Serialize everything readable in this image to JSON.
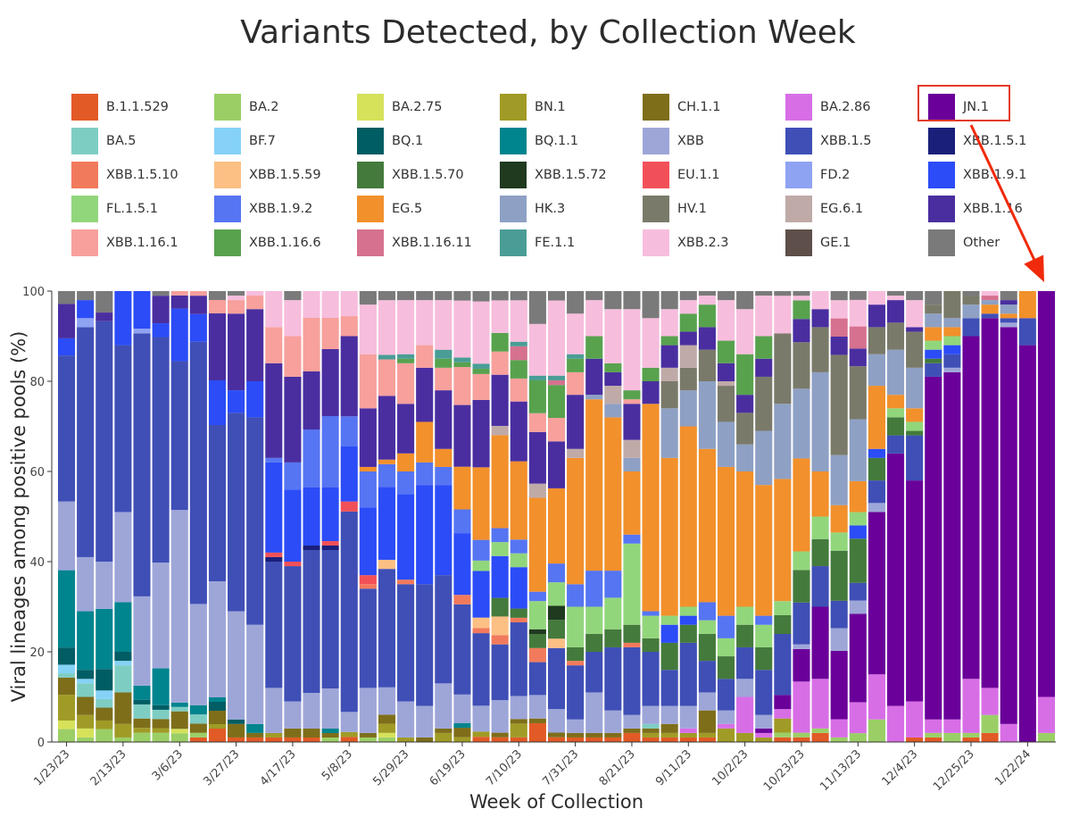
{
  "chart_data": {
    "type": "bar",
    "stacked": true,
    "title": "Variants Detected, by Collection Week",
    "xlabel": "Week of Collection",
    "ylabel": "Viral lineages among positive pools (%)",
    "ylim": [
      0,
      100
    ],
    "yticks": [
      0,
      20,
      40,
      60,
      80,
      100
    ],
    "x_tick_labels": [
      "1/23/23",
      "2/13/23",
      "3/6/23",
      "3/27/23",
      "4/17/23",
      "5/8/23",
      "5/29/23",
      "6/19/23",
      "7/10/23",
      "7/31/23",
      "8/21/23",
      "9/11/23",
      "10/2/23",
      "10/23/23",
      "11/13/23",
      "12/4/23",
      "12/25/23",
      "1/22/24"
    ],
    "x_tick_every": 3,
    "legend_placement": "top",
    "highlighted_legend_entry": "JN.1",
    "legend": [
      {
        "name": "B.1.1.529",
        "color": "#e25a26"
      },
      {
        "name": "BA.2",
        "color": "#9bcf66"
      },
      {
        "name": "BA.2.75",
        "color": "#d5e25a"
      },
      {
        "name": "BN.1",
        "color": "#a09b26"
      },
      {
        "name": "CH.1.1",
        "color": "#7e6e1a"
      },
      {
        "name": "BA.2.86",
        "color": "#d86ee6"
      },
      {
        "name": "JN.1",
        "color": "#6a0099"
      },
      {
        "name": "BA.5",
        "color": "#7ecdc3"
      },
      {
        "name": "BF.7",
        "color": "#85d2f6"
      },
      {
        "name": "BQ.1",
        "color": "#005d63"
      },
      {
        "name": "BQ.1.1",
        "color": "#00848e"
      },
      {
        "name": "XBB",
        "color": "#9ea6d8"
      },
      {
        "name": "XBB.1.5",
        "color": "#3f4fb6"
      },
      {
        "name": "XBB.1.5.1",
        "color": "#1a1f7a"
      },
      {
        "name": "XBB.1.5.10",
        "color": "#f27a5c"
      },
      {
        "name": "XBB.1.5.59",
        "color": "#fcbf84"
      },
      {
        "name": "XBB.1.5.70",
        "color": "#447a3c"
      },
      {
        "name": "XBB.1.5.72",
        "color": "#1f3a1f"
      },
      {
        "name": "EU.1.1",
        "color": "#f25058"
      },
      {
        "name": "FD.2",
        "color": "#8fa3f3"
      },
      {
        "name": "XBB.1.9.1",
        "color": "#2b4cf7"
      },
      {
        "name": "FL.1.5.1",
        "color": "#92d67c"
      },
      {
        "name": "XBB.1.9.2",
        "color": "#5675f2"
      },
      {
        "name": "EG.5",
        "color": "#f2902b"
      },
      {
        "name": "HK.3",
        "color": "#8ea0c4"
      },
      {
        "name": "HV.1",
        "color": "#7a7a6a"
      },
      {
        "name": "EG.6.1",
        "color": "#bfaaa8"
      },
      {
        "name": "XBB.1.16",
        "color": "#4a2ea0"
      },
      {
        "name": "XBB.1.16.1",
        "color": "#f7a09c"
      },
      {
        "name": "XBB.1.16.6",
        "color": "#58a24e"
      },
      {
        "name": "XBB.1.16.11",
        "color": "#d6718f"
      },
      {
        "name": "FE.1.1",
        "color": "#4a9d96"
      },
      {
        "name": "XBB.2.3",
        "color": "#f7bddd"
      },
      {
        "name": "GE.1",
        "color": "#5e4f4a"
      },
      {
        "name": "Other",
        "color": "#7a7a7a"
      }
    ],
    "bars": [
      {
        "BA.2": 3,
        "BA.2.75": 2,
        "BN.1": 6,
        "CH.1.1": 4,
        "BA.5": 1,
        "BF.7": 2,
        "BQ.1": 4,
        "BQ.1.1": 18,
        "XBB": 16,
        "XBB.1.5": 34,
        "XBB.1.16": 8,
        "XBB.1.9.1": 4,
        "Other": 3
      },
      {
        "BA.2": 1,
        "BA.2.75": 2,
        "BN.1": 3,
        "CH.1.1": 4,
        "BA.5": 3,
        "BF.7": 1,
        "BQ.1": 2,
        "BQ.1.1": 13,
        "XBB": 12,
        "XBB.1.5": 51,
        "FD.2": 2,
        "XBB.1.9.1": 4,
        "Other": 2
      },
      {
        "BA.2": 3,
        "BN.1": 2,
        "CH.1.1": 3,
        "BA.5": 2,
        "BF.7": 2,
        "BQ.1": 5,
        "BQ.1.1": 14,
        "XBB": 11,
        "XBB.1.5": 56,
        "XBB.1.16": 2,
        "Other": 5
      },
      {
        "BA.2": 1,
        "BN.1": 3,
        "CH.1.1": 7,
        "BA.5": 6,
        "BF.7": 1,
        "BQ.1": 2,
        "BQ.1.1": 11,
        "XBB": 20,
        "XBB.1.5": 37,
        "XBB.1.9.1": 12
      },
      {
        "BA.2": 2,
        "BN.1": 1,
        "CH.1.1": 2,
        "BA.5": 3,
        "BQ.1": 1,
        "BQ.1.1": 3,
        "XBB": 19,
        "XBB.1.5": 56,
        "FD.2": 1,
        "XBB.1.9.1": 8
      },
      {
        "BA.2": 2,
        "BN.1": 1,
        "CH.1.1": 2,
        "BA.5": 2,
        "BQ.1": 1,
        "BQ.1.1": 8,
        "XBB": 23,
        "XBB.1.5": 49,
        "XBB.1.9.1": 3,
        "XBB.1.16": 6,
        "Other": 1
      },
      {
        "BA.2": 2,
        "BA.2.75": 1,
        "CH.1.1": 4,
        "BA.5": 1,
        "BQ.1.1": 1,
        "XBB": 44,
        "XBB.1.5": 34,
        "XBB.1.9.1": 12,
        "XBB.1.16": 3,
        "XBB.1.16.1": 1
      },
      {
        "B.1.1.529": 1,
        "BA.2": 1,
        "CH.1.1": 2,
        "BA.5": 2,
        "BQ.1.1": 2,
        "XBB": 22,
        "XBB.1.5": 57,
        "XBB.1.9.1": 6,
        "XBB.1.16": 4,
        "XBB.1.16.1": 1
      },
      {
        "B.1.1.529": 3,
        "BN.1": 1,
        "CH.1.1": 3,
        "BQ.1": 2,
        "BQ.1.1": 1,
        "XBB": 26,
        "XBB.1.5": 35,
        "XBB.1.9.1": 10,
        "XBB.1.16": 15,
        "XBB.1.16.1": 3,
        "Other": 2
      },
      {
        "B.1.1.529": 1,
        "CH.1.1": 3,
        "BQ.1": 1,
        "XBB": 24,
        "XBB.1.5": 44,
        "XBB.1.9.1": 5,
        "XBB.1.16": 17,
        "XBB.1.16.1": 3,
        "XBB.2.3": 1,
        "Other": 1
      },
      {
        "B.1.1.529": 1,
        "CH.1.1": 1,
        "BQ.1.1": 2,
        "XBB": 22,
        "XBB.1.5": 46,
        "XBB.1.9.1": 8,
        "XBB.1.16": 16,
        "XBB.1.16.1": 3,
        "XBB.2.3": 1
      },
      {
        "B.1.1.529": 1,
        "BN.1": 1,
        "XBB": 10,
        "XBB.1.5": 28,
        "XBB.1.5.1": 1,
        "EU.1.1": 1,
        "XBB.1.9.1": 20,
        "XBB.1.9.2": 1,
        "XBB.1.16": 21,
        "XBB.1.16.1": 8,
        "XBB.2.3": 8
      },
      {
        "B.1.1.529": 1,
        "CH.1.1": 2,
        "XBB": 6,
        "XBB.1.5": 30,
        "EU.1.1": 1,
        "XBB.1.9.1": 16,
        "XBB.1.9.2": 6,
        "XBB.1.16": 19,
        "XBB.1.16.1": 9,
        "XBB.2.3": 8,
        "Other": 2
      },
      {
        "B.1.1.529": 1,
        "CH.1.1": 2,
        "XBB": 8,
        "XBB.1.5": 32,
        "XBB.1.5.1": 1,
        "XBB.1.9.1": 13,
        "XBB.1.9.2": 13,
        "XBB.1.16": 13,
        "XBB.1.16.1": 12,
        "XBB.2.3": 6
      },
      {
        "BA.2": 1,
        "CH.1.1": 1,
        "BQ.1.1": 1,
        "XBB": 9,
        "XBB.1.5": 31,
        "XBB.1.5.1": 1,
        "EU.1.1": 1,
        "XBB.1.9.1": 12,
        "XBB.1.9.2": 16,
        "XBB.1.16": 15,
        "XBB.1.16.1": 7,
        "XBB.2.3": 6
      },
      {
        "B.1.1.529": 1,
        "BN.1": 1,
        "XBB": 4,
        "XBB.1.5": 40,
        "EU.1.1": 2,
        "XBB.1.9.1": 11,
        "XBB.1.9.2": 6,
        "XBB.1.16": 16,
        "XBB.1.16.1": 4,
        "XBB.2.3": 5
      },
      {
        "BA.2": 1,
        "CH.1.1": 1,
        "XBB": 10,
        "XBB.1.5": 22,
        "XBB.1.5.10": 1,
        "EU.1.1": 2,
        "XBB.1.9.1": 15,
        "XBB.1.9.2": 8,
        "EG.5": 1,
        "XBB.1.16": 13,
        "XBB.1.16.1": 12,
        "XBB.2.3": 11,
        "Other": 3
      },
      {
        "BA.2": 1,
        "BA.2.75": 1,
        "BN.1": 2,
        "CH.1.1": 2,
        "XBB": 6,
        "XBB.1.5": 26,
        "XBB.1.5.59": 2,
        "XBB.1.9.1": 16,
        "XBB.1.9.2": 5,
        "EG.5": 1,
        "XBB.1.16": 14,
        "XBB.1.16.1": 8,
        "FE.1.1": 1,
        "XBB.2.3": 12,
        "Other": 2
      },
      {
        "BN.1": 1,
        "XBB": 8,
        "XBB.1.5": 26,
        "XBB.1.5.10": 1,
        "XBB.1.9.1": 19,
        "XBB.1.9.2": 5,
        "EG.5": 4,
        "XBB.1.16": 11,
        "XBB.1.16.1": 9,
        "XBB.1.16.6": 1,
        "FE.1.1": 1,
        "XBB.2.3": 12,
        "Other": 2
      },
      {
        "CH.1.1": 1,
        "XBB": 7,
        "XBB.1.5": 27,
        "XBB.1.9.1": 22,
        "XBB.1.9.2": 5,
        "EG.5": 9,
        "XBB.1.16": 12,
        "XBB.1.16.1": 5,
        "XBB.2.3": 10,
        "Other": 2
      },
      {
        "BN.1": 2,
        "CH.1.1": 1,
        "XBB": 10,
        "XBB.1.5": 24,
        "XBB.1.9.1": 20,
        "XBB.1.9.2": 4,
        "EG.5": 4,
        "XBB.1.16": 13,
        "XBB.1.16.1": 5,
        "XBB.1.16.6": 2,
        "FE.1.1": 2,
        "XBB.2.3": 11,
        "Other": 2
      },
      {
        "BN.1": 1,
        "CH.1.1": 2,
        "BQ.1.1": 1,
        "XBB": 6,
        "XBB.1.5": 19,
        "XBB.1.5.10": 2,
        "XBB.1.9.1": 13,
        "XBB.1.9.2": 5,
        "EG.5": 9,
        "XBB.1.16": 13,
        "XBB.1.16.1": 8,
        "XBB.1.16.6": 1,
        "FE.1.1": 1,
        "XBB.2.3": 12,
        "Other": 2
      },
      {
        "B.1.1.529": 1,
        "BN.1": 1,
        "XBB": 5,
        "XBB.1.5": 14,
        "XBB.1.5.10": 1,
        "XBB.1.5.59": 2,
        "FL.1.5.1": 2,
        "XBB.1.9.1": 9,
        "XBB.1.9.2": 4,
        "EG.5": 14,
        "XBB.1.16": 13,
        "XBB.1.16.1": 5,
        "XBB.1.16.6": 1,
        "FE.1.1": 1,
        "XBB.2.3": 12,
        "Other": 2
      },
      {
        "B.1.1.529": 1,
        "CH.1.1": 1,
        "XBB": 7,
        "XBB.1.5": 12,
        "XBB.1.5.10": 2,
        "XBB.1.5.59": 4,
        "XBB.1.5.70": 4,
        "FL.1.5.1": 3,
        "XBB.1.9.1": 9,
        "XBB.1.9.2": 3,
        "EG.5": 20,
        "EG.6.1": 2,
        "XBB.1.16": 11,
        "XBB.1.16.1": 5,
        "XBB.1.16.6": 4,
        "XBB.2.3": 7,
        "Other": 2
      },
      {
        "B.1.1.529": 1,
        "BN.1": 3,
        "CH.1.1": 1,
        "XBB": 5,
        "XBB.1.5": 16,
        "XBB.1.5.10": 1,
        "XBB.1.5.70": 2,
        "FL.1.5.1": 3,
        "XBB.1.9.1": 9,
        "XBB.1.9.2": 3,
        "EG.5": 17,
        "XBB.1.16": 13,
        "XBB.1.16.1": 5,
        "XBB.1.16.11": 3,
        "XBB.1.16.6": 4,
        "FE.1.1": 1,
        "XBB.2.3": 9,
        "Other": 2
      },
      {
        "B.1.1.529": 4,
        "CH.1.1": 1,
        "XBB": 5,
        "XBB.1.5": 7,
        "XBB.1.5.10": 3,
        "XBB.1.5.72": 1,
        "XBB.1.5.70": 3,
        "FL.1.5.1": 6,
        "XBB.1.9.2": 2,
        "EG.5": 20,
        "EG.6.1": 3,
        "XBB.1.16": 11,
        "XBB.1.16.1": 4,
        "XBB.1.16.6": 7,
        "FE.1.1": 1,
        "XBB.2.3": 11,
        "Other": 7
      },
      {
        "B.1.1.529": 1,
        "CH.1.1": 1,
        "XBB": 5,
        "XBB.1.5": 13,
        "XBB.1.5.59": 2,
        "XBB.1.5.72": 3,
        "XBB.1.5.70": 4,
        "FL.1.5.1": 5,
        "XBB.1.9.2": 4,
        "EG.5": 16,
        "XBB.1.16": 10,
        "XBB.1.16.1": 5,
        "XBB.1.16.11": 1,
        "XBB.1.16.6": 7,
        "FE.1.1": 1,
        "XBB.2.3": 16,
        "Other": 2
      },
      {
        "B.1.1.529": 1,
        "CH.1.1": 1,
        "XBB": 3,
        "XBB.1.5": 12,
        "XBB.1.5.10": 1,
        "XBB.1.5.70": 3,
        "FL.1.5.1": 9,
        "XBB.1.9.2": 5,
        "EG.5": 28,
        "EG.6.1": 2,
        "XBB.1.16": 12,
        "XBB.1.16.1": 5,
        "XBB.1.16.6": 3,
        "FE.1.1": 1,
        "XBB.2.3": 9,
        "Other": 5
      },
      {
        "B.1.1.529": 1,
        "CH.1.1": 1,
        "XBB": 9,
        "XBB.1.5": 9,
        "XBB.1.5.70": 4,
        "FL.1.5.1": 6,
        "XBB.1.9.2": 8,
        "EG.5": 38,
        "HK.3": 1,
        "XBB.1.16": 8,
        "XBB.1.16.6": 5,
        "XBB.2.3": 8,
        "Other": 2
      },
      {
        "B.1.1.529": 1,
        "CH.1.1": 1,
        "XBB": 5,
        "XBB.1.5": 14,
        "XBB.1.5.70": 4,
        "FL.1.5.1": 7,
        "XBB.1.9.2": 6,
        "EG.5": 34,
        "EG.6.1": 4,
        "HK.3": 3,
        "XBB.1.16": 3,
        "XBB.1.16.6": 2,
        "XBB.2.3": 12,
        "Other": 4
      },
      {
        "B.1.1.529": 2,
        "CH.1.1": 1,
        "XBB": 3,
        "XBB.1.5": 15,
        "XBB.1.5.10": 1,
        "XBB.1.5.70": 4,
        "FL.1.5.1": 18,
        "XBB.1.9.2": 2,
        "EG.5": 14,
        "EG.6.1": 4,
        "HK.3": 3,
        "XBB.1.16": 8,
        "XBB.1.16.1": 1,
        "XBB.1.16.6": 2,
        "XBB.2.3": 18,
        "Other": 4
      },
      {
        "B.1.1.529": 1,
        "BN.1": 1,
        "CH.1.1": 1,
        "BA.5": 1,
        "XBB": 4,
        "XBB.1.5": 12,
        "XBB.1.5.70": 3,
        "FL.1.5.1": 5,
        "XBB.1.9.2": 1,
        "EG.5": 46,
        "XBB.1.16": 5,
        "XBB.1.16.6": 3,
        "XBB.2.3": 11,
        "Other": 6
      },
      {
        "B.1.1.529": 1,
        "BN.1": 1,
        "CH.1.1": 2,
        "XBB": 4,
        "XBB.1.5": 8,
        "XBB.1.5.70": 6,
        "FL.1.5.1": 2,
        "XBB.1.9.1": 4,
        "EG.5": 35,
        "EG.6.1": 3,
        "HK.3": 11,
        "HV.1": 6,
        "XBB.1.16": 5,
        "XBB.1.16.6": 2,
        "XBB.2.3": 6,
        "Other": 4
      },
      {
        "B.1.1.529": 1,
        "BN.1": 1,
        "BA.2.86": 1,
        "XBB": 5,
        "XBB.1.5": 14,
        "XBB.1.5.70": 4,
        "FL.1.5.1": 2,
        "XBB.1.9.1": 2,
        "EG.5": 40,
        "EG.6.1": 5,
        "HK.3": 8,
        "HV.1": 5,
        "XBB.1.16": 3,
        "XBB.1.16.6": 4,
        "XBB.2.3": 3,
        "Other": 2
      },
      {
        "B.1.1.529": 1,
        "BN.1": 1,
        "CH.1.1": 5,
        "XBB": 4,
        "XBB.1.5": 7,
        "XBB.1.5.70": 6,
        "FL.1.5.1": 3,
        "XBB.1.9.2": 4,
        "EG.5": 34,
        "HK.3": 15,
        "HV.1": 7,
        "XBB.1.16": 5,
        "XBB.1.16.6": 5,
        "XBB.2.3": 2,
        "Other": 1
      },
      {
        "BN.1": 3,
        "BA.2.86": 1,
        "XBB": 3,
        "XBB.1.5": 7,
        "XBB.1.5.70": 5,
        "FL.1.5.1": 4,
        "XBB.1.9.2": 5,
        "EG.5": 33,
        "EG.6.1": 1,
        "HK.3": 10,
        "HV.1": 8,
        "XBB.1.16": 4,
        "XBB.1.16.6": 5,
        "XBB.2.3": 9,
        "Other": 2
      },
      {
        "BN.1": 2,
        "BA.2.86": 8,
        "XBB": 4,
        "XBB.1.5": 7,
        "XBB.1.5.70": 5,
        "FL.1.5.1": 4,
        "EG.5": 30,
        "HK.3": 6,
        "HV.1": 7,
        "XBB.1.16": 4,
        "XBB.1.16.6": 9,
        "XBB.2.3": 10,
        "Other": 4
      },
      {
        "BN.1": 1,
        "BA.2.86": 1,
        "JN.1": 1,
        "XBB": 3,
        "XBB.1.5": 10,
        "XBB.1.5.70": 5,
        "FL.1.5.1": 5,
        "XBB.1.9.2": 2,
        "EG.5": 29,
        "HK.3": 12,
        "HV.1": 12,
        "XBB.1.16": 4,
        "XBB.1.16.6": 5,
        "XBB.2.3": 9,
        "Other": 1
      },
      {
        "B.1.1.529": 1,
        "BA.2": 1,
        "BN.1": 3,
        "BA.2.86": 2,
        "JN.1": 3,
        "XBB.1.5": 13,
        "XBB.1.5.70": 4,
        "FL.1.5.1": 3,
        "EG.5": 26,
        "HK.3": 16,
        "HV.1": 15,
        "XBB.2.3": 8,
        "Other": 1
      },
      {
        "B.1.1.529": 1,
        "BA.2": 1,
        "BA.2.86": 11,
        "JN.1": 7,
        "XBB": 1,
        "XBB.1.5": 9,
        "XBB.1.5.70": 7,
        "FL.1.5.1": 4,
        "EG.5": 20,
        "HK.3": 15,
        "HV.1": 10,
        "XBB.1.16": 5,
        "XBB.1.16.6": 4,
        "XBB.2.3": 1,
        "Other": 1
      },
      {
        "B.1.1.529": 2,
        "BA.2": 1,
        "BA.2.86": 11,
        "JN.1": 16,
        "XBB.1.5": 9,
        "XBB.1.5.70": 6,
        "FL.1.5.1": 5,
        "EG.5": 10,
        "HK.3": 22,
        "HV.1": 10,
        "XBB.1.16": 4,
        "XBB.2.3": 4
      },
      {
        "BA.2": 1,
        "BA.2.86": 4,
        "JN.1": 15,
        "XBB": 5,
        "XBB.1.5": 6,
        "XBB.1.5.70": 11,
        "FL.1.5.1": 4,
        "EG.5": 6,
        "HK.3": 11,
        "HV.1": 22,
        "XBB.1.16": 4,
        "XBB.1.16.11": 4,
        "XBB.2.3": 4,
        "Other": 2
      },
      {
        "BA.2": 2,
        "BA.2.86": 7,
        "JN.1": 20,
        "XBB": 3,
        "XBB.1.5": 4,
        "XBB.1.5.70": 10,
        "FL.1.5.1": 3,
        "XBB.1.9.1": 3,
        "EG.5": 7,
        "HK.3": 14,
        "HV.1": 12,
        "XBB.1.16": 4,
        "XBB.1.16.11": 5,
        "XBB.2.3": 6,
        "Other": 2
      },
      {
        "BA.2": 5,
        "BA.2.86": 10,
        "JN.1": 36,
        "XBB": 2,
        "XBB.1.5": 5,
        "XBB.1.5.70": 5,
        "XBB.1.9.1": 2,
        "EG.5": 14,
        "HK.3": 7,
        "HV.1": 6,
        "XBB.1.16": 5,
        "XBB.2.3": 3
      },
      {
        "BA.2.86": 8,
        "JN.1": 56,
        "XBB.1.5": 4,
        "XBB.1.5.70": 4,
        "FL.1.5.1": 2,
        "EG.5": 3,
        "HK.3": 10,
        "HV.1": 6,
        "XBB.1.16": 5,
        "XBB.2.3": 1,
        "Other": 1
      },
      {
        "B.1.1.529": 1,
        "BA.2.86": 8,
        "JN.1": 49,
        "XBB.1.5": 10,
        "XBB.1.5.70": 1,
        "FL.1.5.1": 2,
        "EG.5": 3,
        "HK.3": 9,
        "HV.1": 8,
        "XBB.1.16": 1,
        "XBB.2.3": 6,
        "Other": 2
      },
      {
        "B.1.1.529": 1,
        "BA.2": 1,
        "BA.2.86": 3,
        "JN.1": 76,
        "XBB.1.5": 3,
        "XBB.1.5.70": 1,
        "FL.1.5.1": 2,
        "XBB.1.9.1": 2,
        "EG.5": 3,
        "HK.3": 3,
        "HV.1": 2,
        "Other": 3
      },
      {
        "BA.2": 2,
        "BA.2.86": 3,
        "JN.1": 77,
        "XBB": 1,
        "XBB.1.5": 3,
        "FL.1.5.1": 2,
        "XBB.1.9.1": 2,
        "EG.5": 2,
        "HK.3": 2,
        "HV.1": 6,
        "Other": 0
      },
      {
        "B.1.1.529": 1,
        "BA.2": 1,
        "BA.2.86": 12,
        "JN.1": 76,
        "XBB.1.5": 4,
        "HK.3": 3,
        "HV.1": 2,
        "Other": 1
      },
      {
        "B.1.1.529": 2,
        "BA.2": 4,
        "BA.2.86": 6,
        "JN.1": 82,
        "XBB.1.5": 1,
        "EG.5": 2,
        "HK.3": 1,
        "XBB.1.16.11": 1,
        "XBB.2.3": 1
      },
      {
        "BA.2.86": 4,
        "JN.1": 88,
        "XBB": 1,
        "XBB.1.5": 1,
        "EG.5": 1,
        "XBB.1.16": 1,
        "HK.3": 2,
        "Other": 2
      },
      {
        "JN.1": 88,
        "XBB.1.5": 6,
        "EG.5": 6
      },
      {
        "BA.2": 2,
        "BA.2.86": 8,
        "JN.1": 90
      }
    ]
  }
}
